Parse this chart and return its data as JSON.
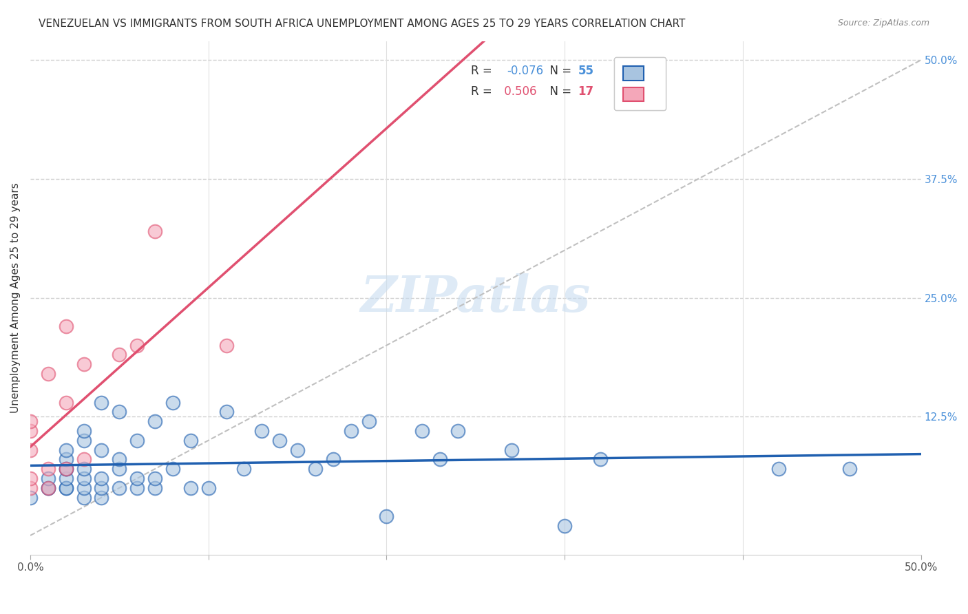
{
  "title": "VENEZUELAN VS IMMIGRANTS FROM SOUTH AFRICA UNEMPLOYMENT AMONG AGES 25 TO 29 YEARS CORRELATION CHART",
  "source": "Source: ZipAtlas.com",
  "xlabel": "",
  "ylabel": "Unemployment Among Ages 25 to 29 years",
  "xlim": [
    0,
    0.5
  ],
  "ylim": [
    -0.02,
    0.52
  ],
  "xticks": [
    0.0,
    0.1,
    0.2,
    0.3,
    0.4,
    0.5
  ],
  "xticklabels": [
    "0.0%",
    "",
    "",
    "",
    "",
    "50.0%"
  ],
  "yticks_right": [
    0.0,
    0.125,
    0.25,
    0.375,
    0.5
  ],
  "ytick_labels_right": [
    "",
    "12.5%",
    "25.0%",
    "37.5%",
    "50.0%"
  ],
  "watermark": "ZIPatlas",
  "legend_blue_label": "R = -0.076   N = 55",
  "legend_pink_label": "R =  0.506   N = 17",
  "blue_color": "#a8c4e0",
  "pink_color": "#f4a7b9",
  "blue_line_color": "#2060b0",
  "pink_line_color": "#e05070",
  "venezuelan_x": [
    0.0,
    0.01,
    0.01,
    0.01,
    0.02,
    0.02,
    0.02,
    0.02,
    0.02,
    0.02,
    0.02,
    0.03,
    0.03,
    0.03,
    0.03,
    0.03,
    0.03,
    0.04,
    0.04,
    0.04,
    0.04,
    0.04,
    0.05,
    0.05,
    0.05,
    0.05,
    0.06,
    0.06,
    0.06,
    0.07,
    0.07,
    0.07,
    0.08,
    0.08,
    0.09,
    0.09,
    0.1,
    0.11,
    0.12,
    0.13,
    0.14,
    0.15,
    0.16,
    0.17,
    0.18,
    0.19,
    0.2,
    0.22,
    0.23,
    0.24,
    0.27,
    0.3,
    0.32,
    0.42,
    0.46
  ],
  "venezuelan_y": [
    0.04,
    0.05,
    0.05,
    0.06,
    0.05,
    0.05,
    0.06,
    0.07,
    0.07,
    0.08,
    0.09,
    0.04,
    0.05,
    0.06,
    0.07,
    0.1,
    0.11,
    0.04,
    0.05,
    0.06,
    0.09,
    0.14,
    0.05,
    0.07,
    0.08,
    0.13,
    0.05,
    0.06,
    0.1,
    0.05,
    0.06,
    0.12,
    0.07,
    0.14,
    0.05,
    0.1,
    0.05,
    0.13,
    0.07,
    0.11,
    0.1,
    0.09,
    0.07,
    0.08,
    0.11,
    0.12,
    0.02,
    0.11,
    0.08,
    0.11,
    0.09,
    0.01,
    0.08,
    0.07,
    0.07
  ],
  "sa_x": [
    0.0,
    0.0,
    0.0,
    0.0,
    0.0,
    0.01,
    0.01,
    0.01,
    0.02,
    0.02,
    0.02,
    0.03,
    0.03,
    0.05,
    0.06,
    0.07,
    0.11
  ],
  "sa_y": [
    0.05,
    0.06,
    0.09,
    0.11,
    0.12,
    0.05,
    0.07,
    0.17,
    0.07,
    0.14,
    0.22,
    0.08,
    0.18,
    0.19,
    0.2,
    0.32,
    0.2
  ],
  "blue_r": -0.076,
  "pink_r": 0.506
}
